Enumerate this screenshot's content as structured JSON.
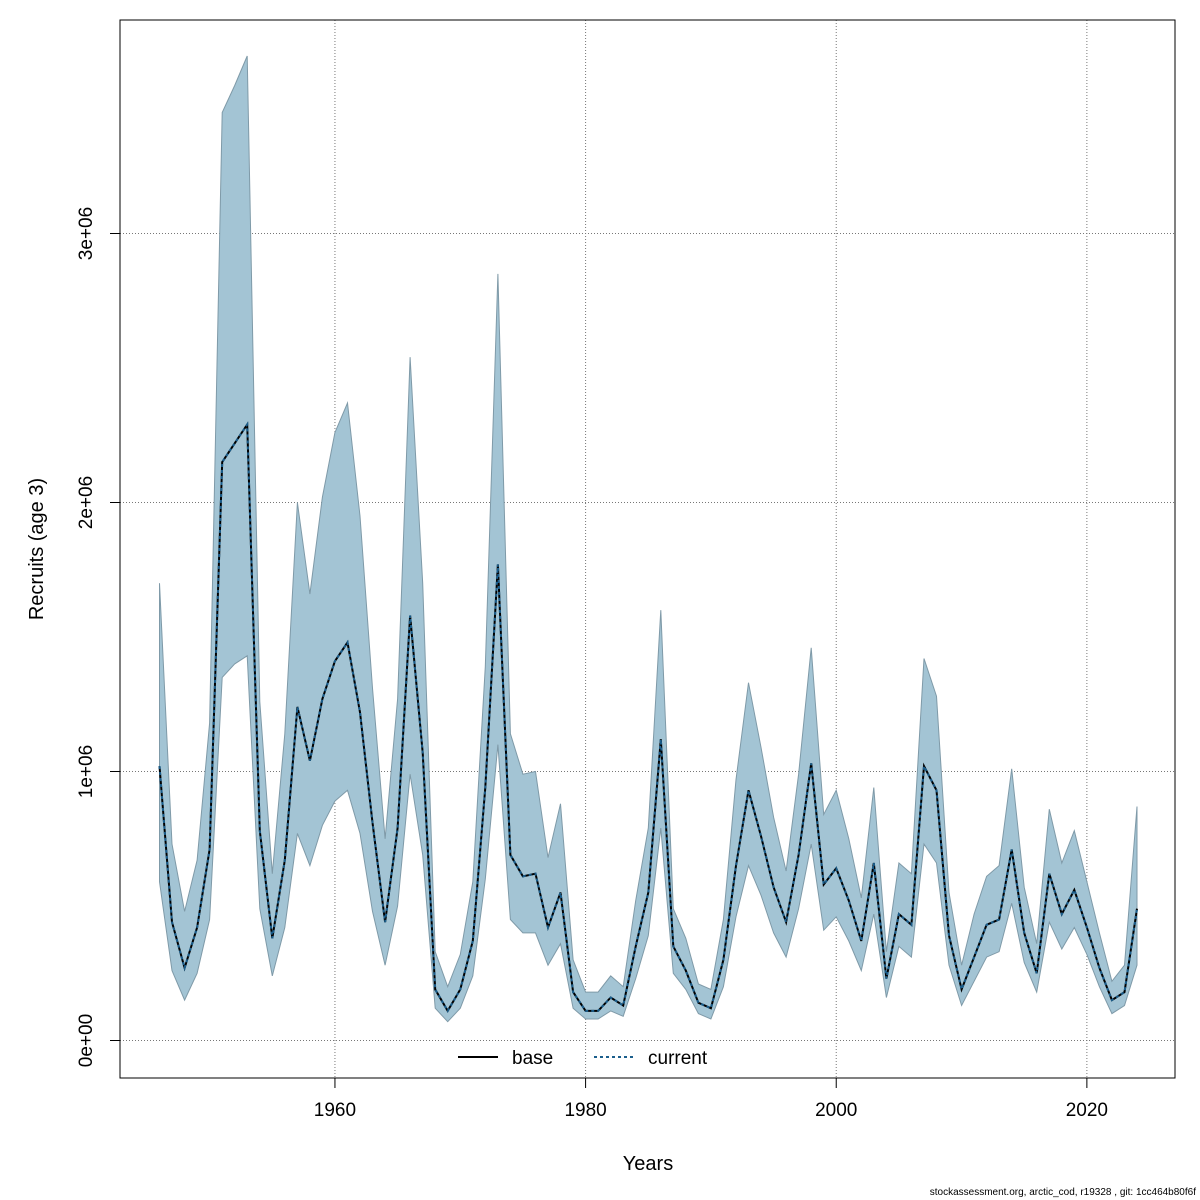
{
  "chart_data": {
    "type": "area",
    "xlabel": "Years",
    "ylabel": "Recruits (age 3)",
    "xlim": [
      1942,
      2027
    ],
    "ylim": [
      -150000,
      3800000
    ],
    "x_ticks": [
      1960,
      1980,
      2000,
      2020
    ],
    "x_tick_labels": [
      "1960",
      "1980",
      "2000",
      "2020"
    ],
    "y_ticks": [
      0,
      1000000,
      2000000,
      3000000
    ],
    "y_tick_labels": [
      "0e+00",
      "1e+06",
      "2e+06",
      "3e+06"
    ],
    "grid": true,
    "legend_position": "bottom-center",
    "colors": {
      "band": "#a3c4d4",
      "band_edge": "#7f9aa8",
      "base": "#000000",
      "current": "#1b5e8c"
    },
    "years": [
      1946,
      1947,
      1948,
      1949,
      1950,
      1951,
      1952,
      1953,
      1954,
      1955,
      1956,
      1957,
      1958,
      1959,
      1960,
      1961,
      1962,
      1963,
      1964,
      1965,
      1966,
      1967,
      1968,
      1969,
      1970,
      1971,
      1972,
      1973,
      1974,
      1975,
      1976,
      1977,
      1978,
      1979,
      1980,
      1981,
      1982,
      1983,
      1984,
      1985,
      1986,
      1987,
      1988,
      1989,
      1990,
      1991,
      1992,
      1993,
      1994,
      1995,
      1996,
      1997,
      1998,
      1999,
      2000,
      2001,
      2002,
      2003,
      2004,
      2005,
      2006,
      2007,
      2008,
      2009,
      2010,
      2011,
      2012,
      2013,
      2014,
      2015,
      2016,
      2017,
      2018,
      2019,
      2020,
      2021,
      2022,
      2023,
      2024
    ],
    "upper": [
      1700000,
      730000,
      480000,
      670000,
      1180000,
      3450000,
      3550000,
      3660000,
      1260000,
      620000,
      1140000,
      2000000,
      1660000,
      2020000,
      2260000,
      2370000,
      1950000,
      1310000,
      750000,
      1270000,
      2540000,
      1700000,
      330000,
      200000,
      320000,
      590000,
      1390000,
      2850000,
      1140000,
      990000,
      1000000,
      680000,
      880000,
      300000,
      180000,
      180000,
      240000,
      200000,
      520000,
      790000,
      1600000,
      490000,
      380000,
      210000,
      190000,
      450000,
      970000,
      1330000,
      1090000,
      830000,
      630000,
      990000,
      1460000,
      840000,
      930000,
      750000,
      530000,
      940000,
      330000,
      660000,
      620000,
      1420000,
      1280000,
      550000,
      280000,
      470000,
      610000,
      650000,
      1010000,
      570000,
      360000,
      860000,
      660000,
      780000,
      590000,
      400000,
      220000,
      280000,
      870000
    ],
    "lower": [
      590000,
      260000,
      150000,
      250000,
      450000,
      1350000,
      1400000,
      1430000,
      490000,
      240000,
      420000,
      770000,
      650000,
      800000,
      890000,
      930000,
      770000,
      480000,
      280000,
      500000,
      990000,
      690000,
      120000,
      70000,
      120000,
      240000,
      600000,
      1100000,
      450000,
      400000,
      400000,
      280000,
      360000,
      120000,
      80000,
      80000,
      110000,
      90000,
      230000,
      390000,
      790000,
      250000,
      190000,
      100000,
      80000,
      200000,
      460000,
      650000,
      540000,
      400000,
      310000,
      490000,
      730000,
      410000,
      460000,
      370000,
      260000,
      470000,
      160000,
      350000,
      310000,
      730000,
      660000,
      280000,
      130000,
      220000,
      310000,
      330000,
      510000,
      290000,
      180000,
      440000,
      340000,
      420000,
      320000,
      200000,
      100000,
      130000,
      280000
    ],
    "series": [
      {
        "name": "base",
        "values": [
          1020000,
          440000,
          270000,
          420000,
          710000,
          2150000,
          2220000,
          2290000,
          780000,
          380000,
          670000,
          1240000,
          1040000,
          1270000,
          1410000,
          1480000,
          1220000,
          810000,
          440000,
          790000,
          1580000,
          1070000,
          190000,
          110000,
          190000,
          370000,
          940000,
          1770000,
          690000,
          610000,
          620000,
          420000,
          550000,
          180000,
          110000,
          110000,
          160000,
          130000,
          350000,
          550000,
          1120000,
          350000,
          260000,
          140000,
          120000,
          300000,
          650000,
          930000,
          760000,
          570000,
          440000,
          690000,
          1030000,
          580000,
          640000,
          520000,
          370000,
          660000,
          230000,
          470000,
          430000,
          1020000,
          930000,
          390000,
          190000,
          310000,
          430000,
          450000,
          710000,
          400000,
          250000,
          620000,
          470000,
          560000,
          420000,
          270000,
          150000,
          180000,
          490000
        ]
      },
      {
        "name": "current",
        "values": [
          1020000,
          440000,
          270000,
          420000,
          710000,
          2150000,
          2220000,
          2290000,
          780000,
          380000,
          670000,
          1240000,
          1040000,
          1270000,
          1410000,
          1480000,
          1220000,
          810000,
          440000,
          790000,
          1580000,
          1070000,
          190000,
          110000,
          190000,
          370000,
          940000,
          1770000,
          690000,
          610000,
          620000,
          420000,
          550000,
          180000,
          110000,
          110000,
          160000,
          130000,
          350000,
          550000,
          1120000,
          350000,
          260000,
          140000,
          120000,
          300000,
          650000,
          930000,
          760000,
          570000,
          440000,
          690000,
          1030000,
          580000,
          640000,
          520000,
          370000,
          660000,
          230000,
          470000,
          430000,
          1020000,
          930000,
          390000,
          190000,
          310000,
          430000,
          450000,
          710000,
          400000,
          250000,
          620000,
          470000,
          560000,
          420000,
          270000,
          150000,
          180000,
          490000
        ]
      }
    ],
    "legend": [
      "base",
      "current"
    ]
  },
  "footer": "stockassessment.org, arctic_cod, r19328 , git: 1cc464b80f6f"
}
